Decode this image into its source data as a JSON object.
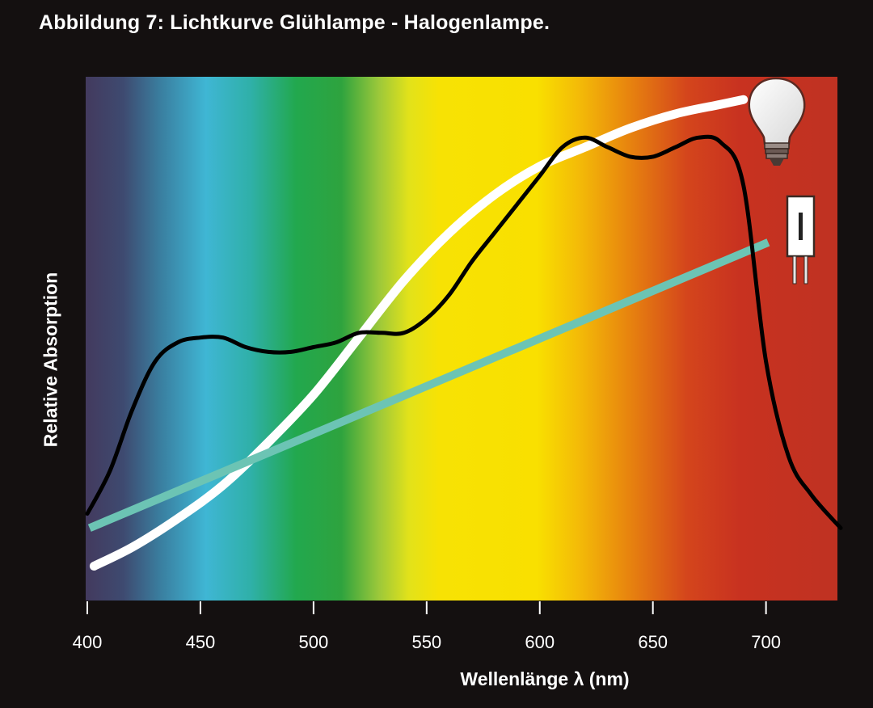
{
  "title": "Abbildung 7: Lichtkurve Glühlampe - Halogenlampe.",
  "chart_data": {
    "type": "line",
    "xlabel": "Wellenlänge λ (nm)",
    "ylabel": "Relative Absorption",
    "xlim": [
      400,
      733
    ],
    "ylim": [
      0,
      1
    ],
    "xticks": [
      400,
      450,
      500,
      550,
      600,
      650,
      700
    ],
    "grid": false,
    "background": "visible-spectrum gradient",
    "legend": "icons at right end of lines (light bulb = white curve, halogen lamp = teal line)",
    "colors": {
      "white_curve": "#ffffff",
      "teal_line": "#6cc4b4",
      "black_curve": "#000000"
    },
    "icons": [
      "lightbulb-icon",
      "halogen-lamp-icon"
    ],
    "series": [
      {
        "x": [
          403,
          420,
          440,
          460,
          480,
          500,
          520,
          540,
          560,
          580,
          600,
          620,
          640,
          660,
          680,
          690
        ],
        "y": [
          0.04,
          0.08,
          0.14,
          0.21,
          0.3,
          0.4,
          0.52,
          0.64,
          0.74,
          0.82,
          0.88,
          0.92,
          0.96,
          0.99,
          1.01,
          1.02
        ],
        "color": "#ffffff"
      },
      {
        "x": [
          401,
          701
        ],
        "y": [
          0.12,
          0.72
        ],
        "color": "#6cc4b4"
      },
      {
        "x": [
          400,
          410,
          420,
          430,
          440,
          450,
          460,
          470,
          480,
          490,
          500,
          510,
          520,
          530,
          540,
          550,
          560,
          570,
          580,
          590,
          600,
          610,
          620,
          630,
          640,
          650,
          660,
          670,
          680,
          690,
          700,
          710,
          720,
          733
        ],
        "y": [
          0.15,
          0.24,
          0.37,
          0.47,
          0.51,
          0.52,
          0.52,
          0.5,
          0.49,
          0.49,
          0.5,
          0.51,
          0.53,
          0.53,
          0.53,
          0.56,
          0.61,
          0.68,
          0.74,
          0.8,
          0.86,
          0.92,
          0.94,
          0.92,
          0.9,
          0.9,
          0.92,
          0.94,
          0.93,
          0.84,
          0.47,
          0.27,
          0.19,
          0.12
        ],
        "color": "#000000"
      }
    ]
  }
}
